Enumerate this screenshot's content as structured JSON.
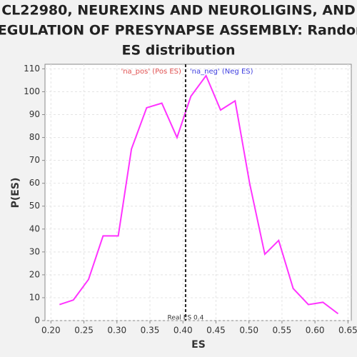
{
  "chart_data": {
    "type": "line",
    "title": [
      "CL22980, NEUREXINS AND NEUROLIGINS, AND",
      "REGULATION OF PRESYNAPSE ASSEMBLY: Random",
      "ES distribution"
    ],
    "xlabel": "ES",
    "ylabel": "P(ES)",
    "x": [
      0.213,
      0.234,
      0.257,
      0.279,
      0.302,
      0.322,
      0.345,
      0.368,
      0.391,
      0.412,
      0.435,
      0.457,
      0.479,
      0.501,
      0.524,
      0.545,
      0.567,
      0.59,
      0.612,
      0.635
    ],
    "values": [
      7,
      9,
      18,
      37,
      37,
      75,
      93,
      95,
      80,
      98,
      107,
      92,
      96,
      60,
      29,
      35,
      14,
      7,
      8,
      3
    ],
    "color": "#ff33ff",
    "xlim": [
      0.191,
      0.655
    ],
    "ylim": [
      0,
      112
    ],
    "xticks": [
      {
        "value": 0.2,
        "label": "0.20"
      },
      {
        "value": 0.25,
        "label": "0.25"
      },
      {
        "value": 0.3,
        "label": "0.30"
      },
      {
        "value": 0.35,
        "label": "0.35"
      },
      {
        "value": 0.4,
        "label": "0.40"
      },
      {
        "value": 0.45,
        "label": "0.45"
      },
      {
        "value": 0.5,
        "label": "0.50"
      },
      {
        "value": 0.55,
        "label": "0.55"
      },
      {
        "value": 0.6,
        "label": "0.60"
      },
      {
        "value": 0.65,
        "label": "0.65"
      }
    ],
    "yticks": [
      0,
      10,
      20,
      30,
      40,
      50,
      60,
      70,
      80,
      90,
      100,
      110
    ],
    "grid": true,
    "vline": {
      "value": 0.404,
      "label": "Real ES 0.4"
    },
    "annotations": [
      {
        "text": "'na_pos' (Pos ES)",
        "color": "#e05050"
      },
      {
        "text": "'na_neg' (Neg ES)",
        "color": "#4040e0"
      }
    ]
  }
}
